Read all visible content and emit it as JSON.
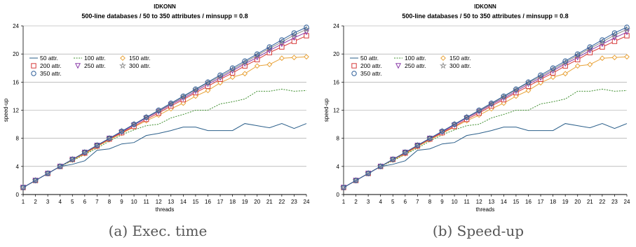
{
  "chart_data": [
    {
      "type": "line",
      "title": "IDKONN",
      "subtitle": "500-line databases / 50 to 350 attributes / minsupp = 0.8",
      "xlabel": "threads",
      "ylabel": "speed-up",
      "caption": "(a) Exec. time",
      "x": [
        1,
        2,
        3,
        4,
        5,
        6,
        7,
        8,
        9,
        10,
        11,
        12,
        13,
        14,
        15,
        16,
        17,
        18,
        19,
        20,
        21,
        22,
        23,
        24
      ],
      "xlim": [
        1,
        24
      ],
      "ylim": [
        0,
        24
      ],
      "yticks": [
        0,
        4,
        8,
        12,
        16,
        20,
        24
      ],
      "grid": "horizontal",
      "legend_position": "upper-left",
      "series": [
        {
          "name": "50 attr.",
          "color": "#2b5f8a",
          "dash": "solid",
          "marker": "none",
          "values": [
            1,
            2,
            3,
            4,
            4.3,
            4.8,
            6.3,
            6.5,
            7.2,
            7.4,
            8.4,
            8.7,
            9.1,
            9.6,
            9.6,
            9.1,
            9.1,
            9.1,
            10.1,
            9.8,
            9.5,
            10.1,
            9.4,
            10.1
          ]
        },
        {
          "name": "100 attr.",
          "color": "#3f8f2f",
          "dash": "dotted",
          "marker": "none",
          "values": [
            1,
            2,
            3,
            4,
            4.8,
            5.7,
            6.6,
            7.6,
            8.5,
            9.2,
            9.8,
            10.0,
            10.9,
            11.4,
            12.0,
            12.0,
            12.9,
            13.2,
            13.6,
            14.7,
            14.7,
            15.0,
            14.7,
            14.8
          ]
        },
        {
          "name": "150 attr.",
          "color": "#e8a33a",
          "dash": "solid",
          "marker": "diamond",
          "values": [
            1,
            2,
            3,
            4,
            4.9,
            5.8,
            6.8,
            7.8,
            8.7,
            9.6,
            10.5,
            11.3,
            12.2,
            13.0,
            14.0,
            14.8,
            15.9,
            16.7,
            17.2,
            18.3,
            18.5,
            19.4,
            19.5,
            19.6
          ]
        },
        {
          "name": "200 attr.",
          "color": "#d63a3a",
          "dash": "solid",
          "marker": "square",
          "values": [
            1,
            2,
            3,
            4,
            5,
            5.9,
            6.9,
            7.9,
            8.8,
            9.7,
            10.7,
            11.6,
            12.6,
            13.5,
            14.5,
            15.4,
            16.4,
            17.3,
            18.3,
            19.2,
            20.2,
            21.0,
            21.8,
            22.6
          ]
        },
        {
          "name": "250 attr.",
          "color": "#8a3aa8",
          "dash": "solid",
          "marker": "triangle-down",
          "values": [
            1,
            2,
            3,
            4,
            5,
            6,
            7,
            8,
            8.9,
            9.9,
            10.9,
            11.8,
            12.8,
            13.7,
            14.7,
            15.7,
            16.6,
            17.6,
            18.6,
            19.5,
            20.5,
            21.4,
            22.3,
            23.1
          ]
        },
        {
          "name": "300 attr.",
          "color": "#8c8c8c",
          "dash": "solid",
          "marker": "star",
          "values": [
            1,
            2,
            3,
            4,
            5,
            6,
            7,
            8,
            9,
            10,
            11,
            11.9,
            12.9,
            13.9,
            14.9,
            15.9,
            16.8,
            17.8,
            18.8,
            19.8,
            20.8,
            21.7,
            22.7,
            23.5
          ]
        },
        {
          "name": "350 attr.",
          "color": "#2f5f9a",
          "dash": "solid",
          "marker": "circle",
          "values": [
            1,
            2,
            3,
            4,
            5,
            6,
            7,
            8,
            9,
            10,
            11,
            12,
            13,
            14,
            15,
            16,
            17,
            18,
            19,
            20,
            21,
            22,
            23,
            23.8
          ]
        }
      ]
    },
    {
      "type": "line",
      "title": "IDKONN",
      "subtitle": "500-line databases / 50 to 350 attributes / minsupp = 0.8",
      "xlabel": "threads",
      "ylabel": "speed-up",
      "caption": "(b) Speed-up",
      "x": [
        1,
        2,
        3,
        4,
        5,
        6,
        7,
        8,
        9,
        10,
        11,
        12,
        13,
        14,
        15,
        16,
        17,
        18,
        19,
        20,
        21,
        22,
        23,
        24
      ],
      "xlim": [
        1,
        24
      ],
      "ylim": [
        0,
        24
      ],
      "yticks": [
        0,
        4,
        8,
        12,
        16,
        20,
        24
      ],
      "grid": "horizontal",
      "legend_position": "upper-left",
      "series": [
        {
          "name": "50 attr.",
          "color": "#2b5f8a",
          "dash": "solid",
          "marker": "none",
          "values": [
            1,
            2,
            3,
            4,
            4.3,
            4.8,
            6.3,
            6.5,
            7.2,
            7.4,
            8.4,
            8.7,
            9.1,
            9.6,
            9.6,
            9.1,
            9.1,
            9.1,
            10.1,
            9.8,
            9.5,
            10.1,
            9.4,
            10.1
          ]
        },
        {
          "name": "100 attr.",
          "color": "#3f8f2f",
          "dash": "dotted",
          "marker": "none",
          "values": [
            1,
            2,
            3,
            4,
            4.8,
            5.7,
            6.6,
            7.6,
            8.5,
            9.2,
            9.8,
            10.0,
            10.9,
            11.4,
            12.0,
            12.0,
            12.9,
            13.2,
            13.6,
            14.7,
            14.7,
            15.0,
            14.7,
            14.8
          ]
        },
        {
          "name": "150 attr.",
          "color": "#e8a33a",
          "dash": "solid",
          "marker": "diamond",
          "values": [
            1,
            2,
            3,
            4,
            4.9,
            5.8,
            6.8,
            7.8,
            8.7,
            9.6,
            10.5,
            11.3,
            12.2,
            13.0,
            14.0,
            14.8,
            15.9,
            16.7,
            17.2,
            18.3,
            18.5,
            19.4,
            19.5,
            19.6
          ]
        },
        {
          "name": "200 attr.",
          "color": "#d63a3a",
          "dash": "solid",
          "marker": "square",
          "values": [
            1,
            2,
            3,
            4,
            5,
            5.9,
            6.9,
            7.9,
            8.8,
            9.7,
            10.7,
            11.6,
            12.6,
            13.5,
            14.5,
            15.4,
            16.4,
            17.3,
            18.3,
            19.2,
            20.2,
            21.0,
            21.8,
            22.6
          ]
        },
        {
          "name": "250 attr.",
          "color": "#8a3aa8",
          "dash": "solid",
          "marker": "triangle-down",
          "values": [
            1,
            2,
            3,
            4,
            5,
            6,
            7,
            8,
            8.9,
            9.9,
            10.9,
            11.8,
            12.8,
            13.7,
            14.7,
            15.7,
            16.6,
            17.6,
            18.6,
            19.5,
            20.5,
            21.4,
            22.3,
            23.1
          ]
        },
        {
          "name": "300 attr.",
          "color": "#8c8c8c",
          "dash": "solid",
          "marker": "star",
          "values": [
            1,
            2,
            3,
            4,
            5,
            6,
            7,
            8,
            9,
            10,
            11,
            11.9,
            12.9,
            13.9,
            14.9,
            15.9,
            16.8,
            17.8,
            18.8,
            19.8,
            20.8,
            21.7,
            22.7,
            23.5
          ]
        },
        {
          "name": "350 attr.",
          "color": "#2f5f9a",
          "dash": "solid",
          "marker": "circle",
          "values": [
            1,
            2,
            3,
            4,
            5,
            6,
            7,
            8,
            9,
            10,
            11,
            12,
            13,
            14,
            15,
            16,
            17,
            18,
            19,
            20,
            21,
            22,
            23,
            23.8
          ]
        }
      ]
    }
  ]
}
